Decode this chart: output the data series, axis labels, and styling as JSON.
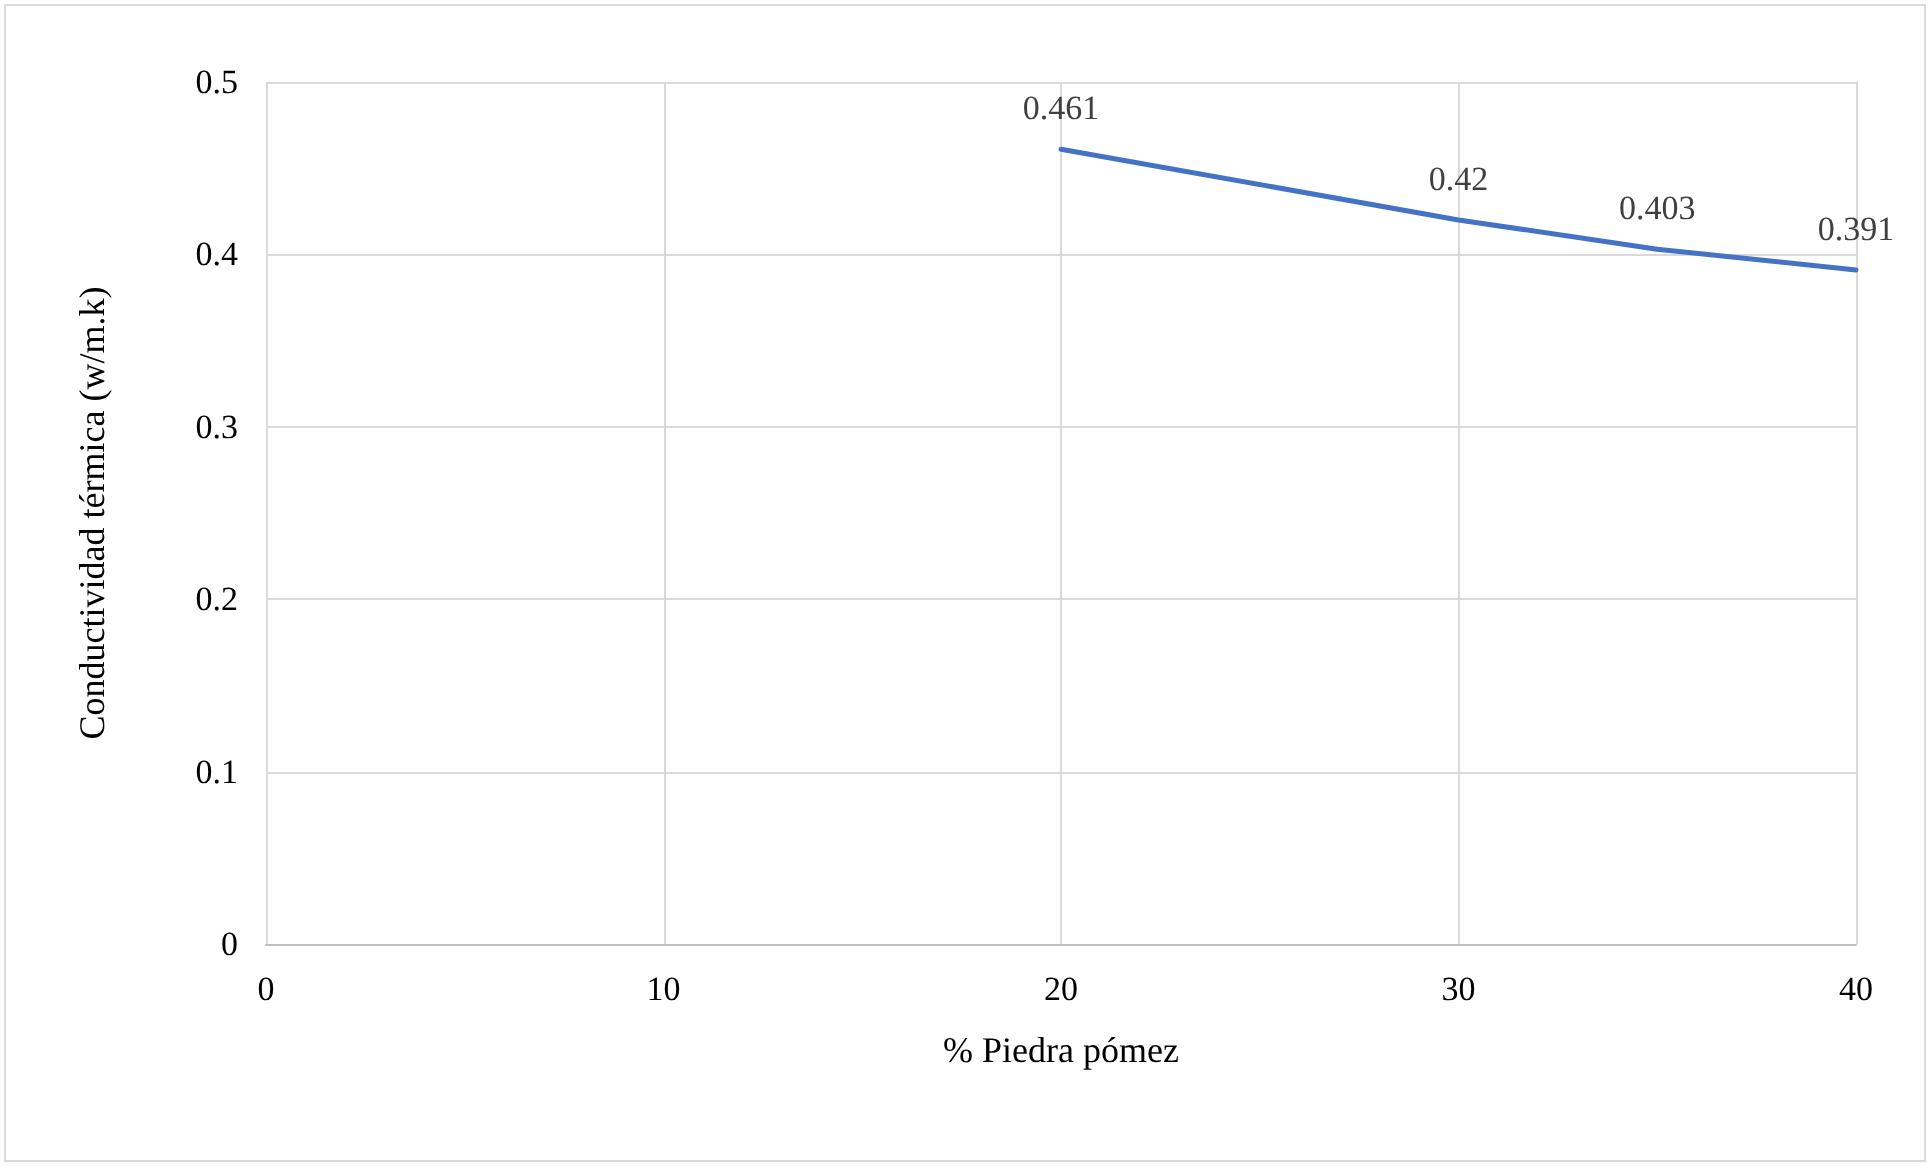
{
  "chart_data": {
    "type": "line",
    "xlabel": "% Piedra pómez",
    "ylabel": "Conductividad térmica (w/m.k)",
    "x": [
      20,
      30,
      35,
      40
    ],
    "series": [
      {
        "color": "#4472c4",
        "values": [
          0.461,
          0.42,
          0.403,
          0.391
        ]
      }
    ],
    "xlim": [
      0,
      40
    ],
    "xticks": [
      0,
      10,
      20,
      30,
      40
    ],
    "ylim": [
      0,
      0.5
    ],
    "yticks": [
      0,
      0.1,
      0.2,
      0.3,
      0.4,
      0.5
    ],
    "grid": true,
    "data_labels": true,
    "marker": "none",
    "line_style": "solid"
  }
}
